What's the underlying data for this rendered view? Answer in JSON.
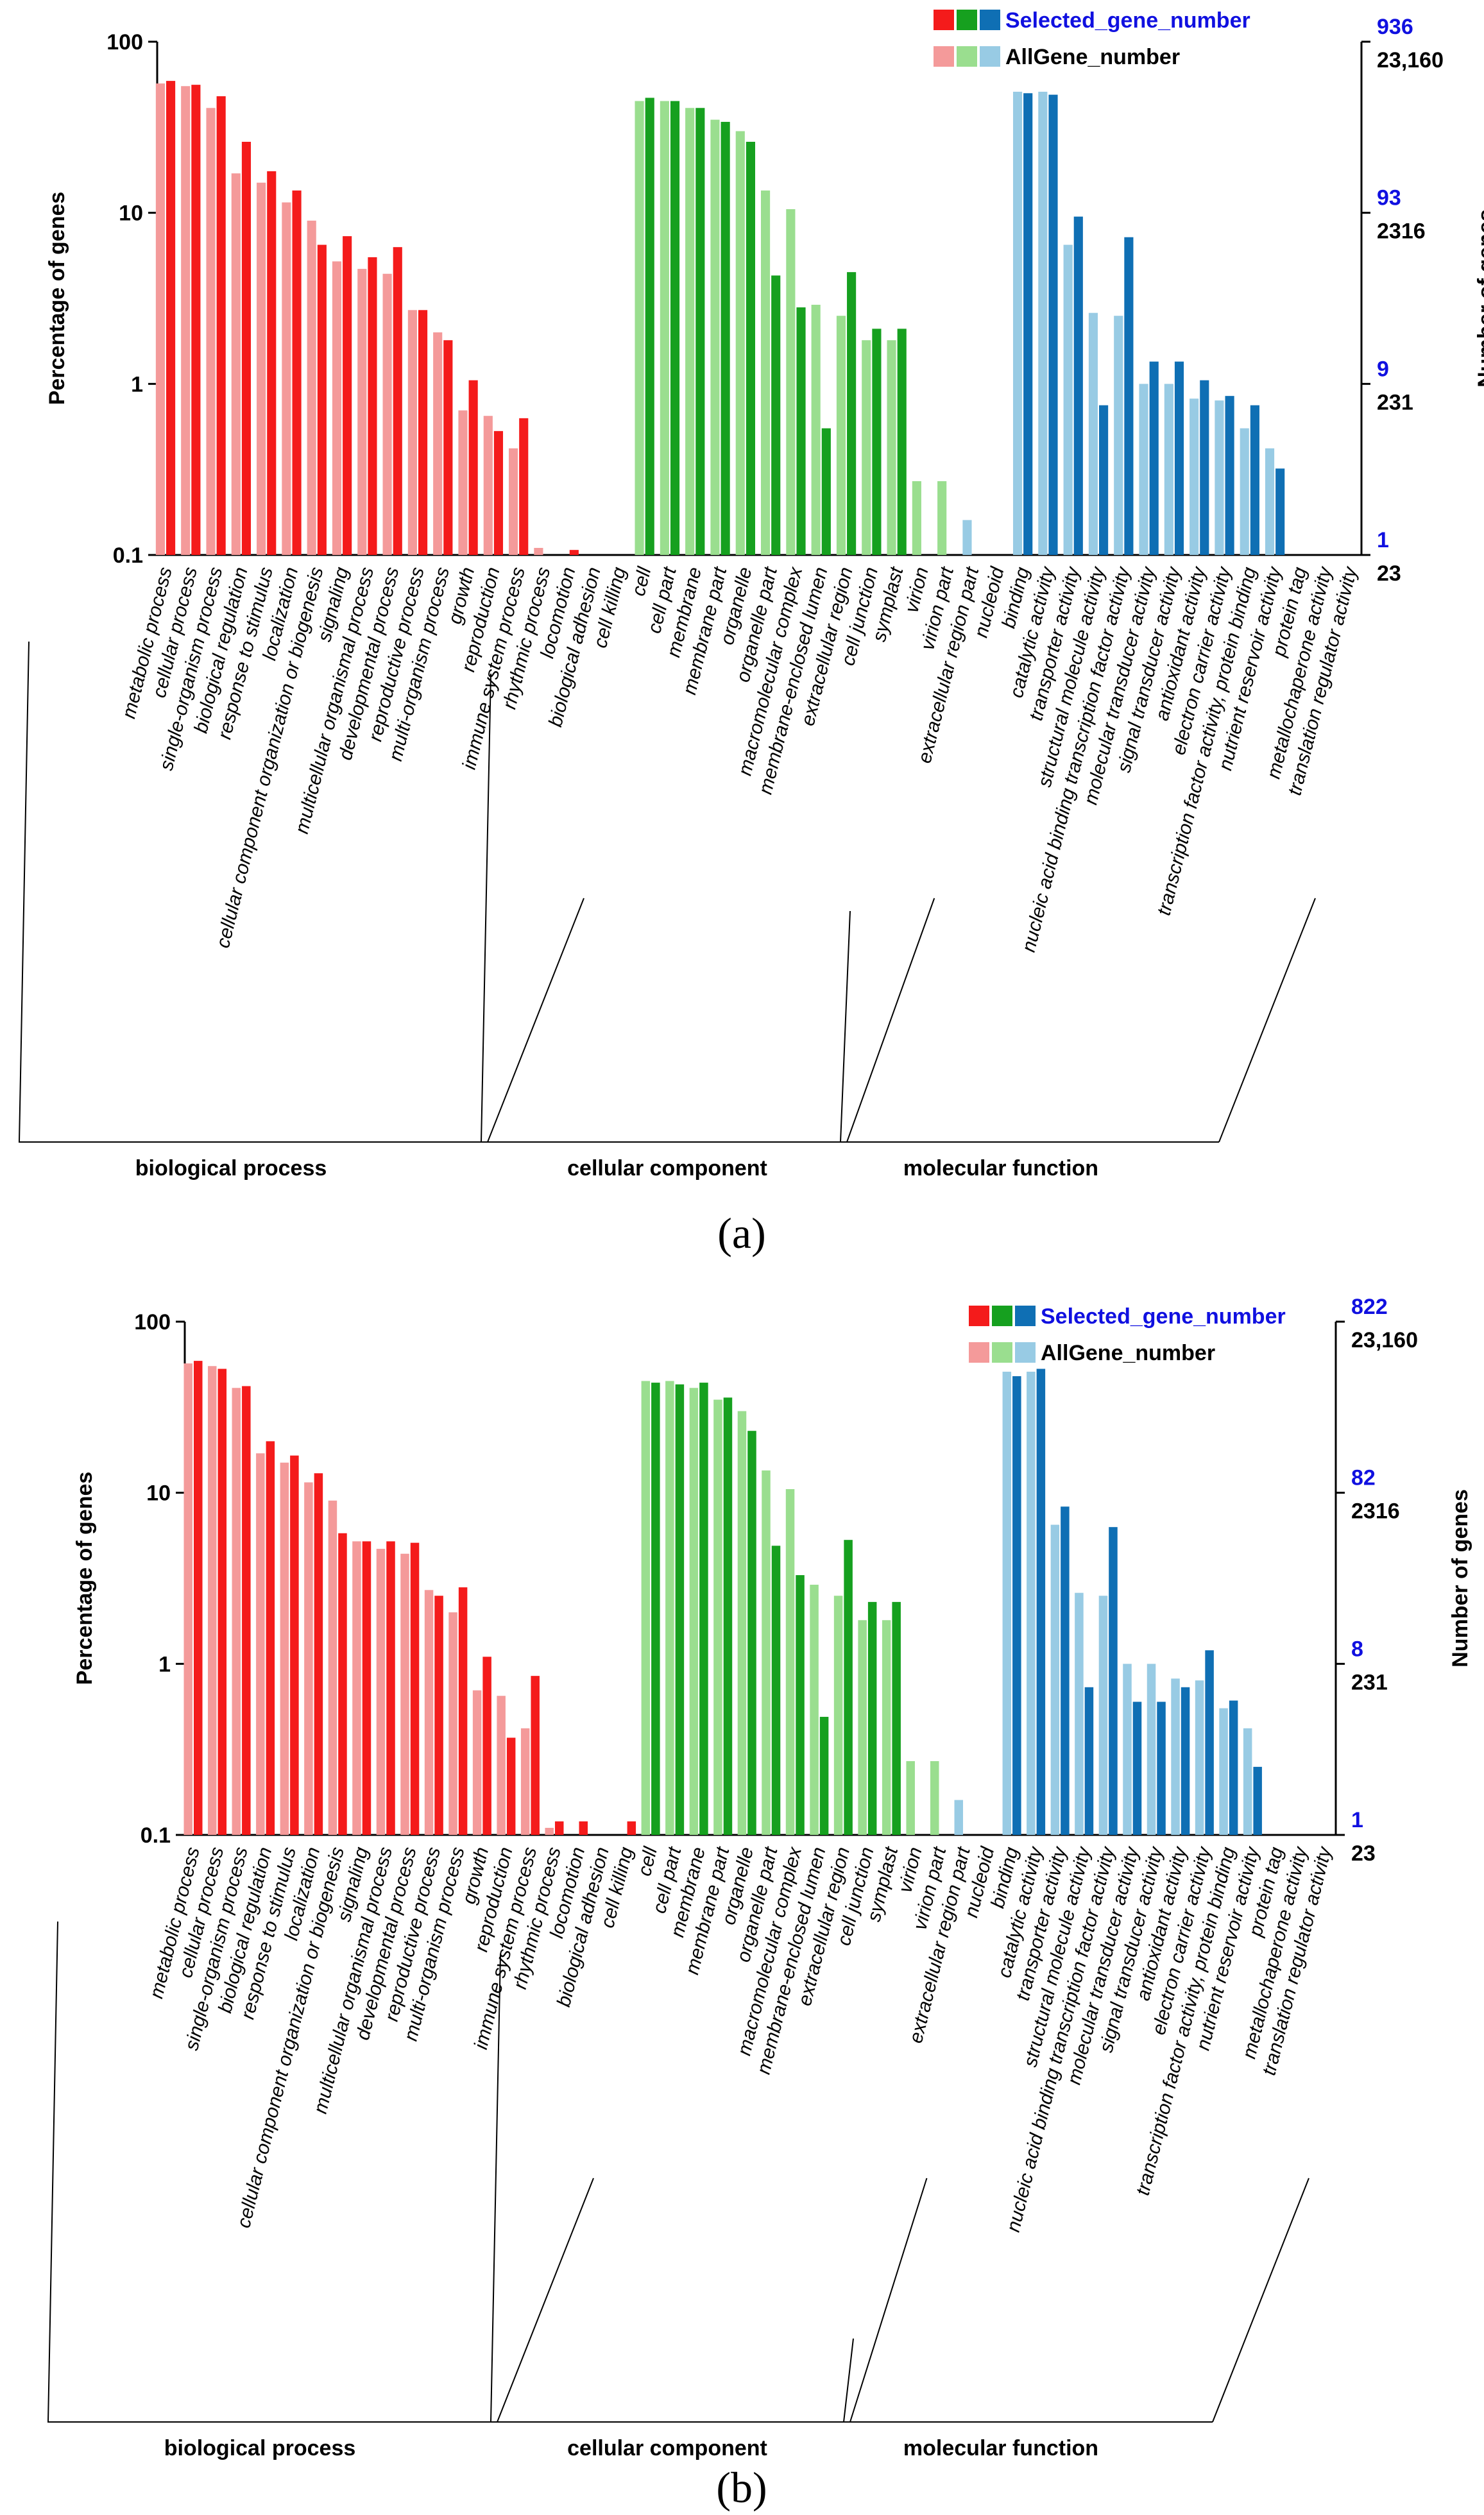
{
  "colors": {
    "bp_selected": "#f41b1b",
    "bp_all": "#f49a9a",
    "cc_selected": "#16a01f",
    "cc_all": "#9ade8f",
    "mf_selected": "#0f6fb4",
    "mf_all": "#98cbe4",
    "axis": "#000000",
    "right_label_blue": "#1010e0"
  },
  "chart_data": [
    {
      "type": "bar",
      "panel_label": "(a)",
      "title": "",
      "ylabel": "Percentage of genes",
      "ylabel_right": "Number of genes",
      "yscale": "log",
      "ylim": [
        0.1,
        100
      ],
      "yticks": [
        "100",
        "10",
        "1",
        "0.1"
      ],
      "right_ticks": [
        {
          "selected": "936",
          "all": "23,160"
        },
        {
          "selected": "93",
          "all": "2316"
        },
        {
          "selected": "9",
          "all": "231"
        },
        {
          "selected": "1",
          "all": "23"
        }
      ],
      "legend": {
        "selected": "Selected_gene_number",
        "all": "AllGene_number"
      },
      "groups": [
        {
          "name": "biological process",
          "key": "bp",
          "count": 19
        },
        {
          "name": "cellular component",
          "key": "cc",
          "count": 13
        },
        {
          "name": "molecular function",
          "key": "mf",
          "count": 16
        }
      ],
      "categories": [
        "metabolic process",
        "cellular process",
        "single-organism process",
        "biological regulation",
        "response to stimulus",
        "localization",
        "cellular component organization or biogenesis",
        "signaling",
        "multicellular organismal process",
        "developmental process",
        "reproductive process",
        "multi-organism process",
        "growth",
        "reproduction",
        "immune system process",
        "rhythmic process",
        "locomotion",
        "biological adhesion",
        "cell killing",
        "cell",
        "cell part",
        "membrane",
        "membrane part",
        "organelle",
        "organelle part",
        "macromolecular complex",
        "membrane-enclosed lumen",
        "extracellular region",
        "cell junction",
        "symplast",
        "virion",
        "virion part",
        "extracellular region part",
        "nucleoid",
        "binding",
        "catalytic activity",
        "transporter activity",
        "structural molecule activity",
        "nucleic acid binding transcription factor activity",
        "molecular transducer activity",
        "signal transducer activity",
        "antioxidant activity",
        "electron carrier activity",
        "transcription factor activity, protein binding",
        "nutrient reservoir activity",
        "protein tag",
        "metallochaperone activity",
        "translation regulator activity"
      ],
      "series": [
        {
          "name": "AllGene_number",
          "values": [
            57,
            55,
            41,
            17,
            15,
            11.5,
            9,
            5.2,
            4.7,
            4.4,
            2.7,
            2.0,
            0.7,
            0.65,
            0.42,
            0.11,
            0,
            0,
            0,
            45,
            45,
            41,
            35,
            30,
            13.5,
            10.5,
            2.9,
            2.5,
            1.8,
            1.8,
            0.27,
            0.27,
            0.16,
            0,
            51,
            51,
            6.5,
            2.6,
            2.5,
            1.0,
            1.0,
            0.82,
            0.8,
            0.55,
            0.42,
            0,
            0,
            0
          ]
        },
        {
          "name": "Selected_gene_number",
          "values": [
            59,
            56,
            48,
            26,
            17.5,
            13.5,
            6.5,
            7.3,
            5.5,
            6.3,
            2.7,
            1.8,
            1.05,
            0.53,
            0.63,
            0,
            0.107,
            0,
            0,
            47,
            45,
            41,
            34,
            26,
            4.3,
            2.8,
            0.55,
            4.5,
            2.1,
            2.1,
            0,
            0,
            0,
            0,
            50,
            49,
            9.5,
            0.75,
            7.2,
            1.35,
            1.35,
            1.05,
            0.85,
            0.75,
            0.32,
            0,
            0,
            0
          ]
        }
      ]
    },
    {
      "type": "bar",
      "panel_label": "(b)",
      "title": "",
      "ylabel": "Percentage of genes",
      "ylabel_right": "Number of genes",
      "yscale": "log",
      "ylim": [
        0.1,
        100
      ],
      "yticks": [
        "100",
        "10",
        "1",
        "0.1"
      ],
      "right_ticks": [
        {
          "selected": "822",
          "all": "23,160"
        },
        {
          "selected": "82",
          "all": "2316"
        },
        {
          "selected": "8",
          "all": "231"
        },
        {
          "selected": "1",
          "all": "23"
        }
      ],
      "legend": {
        "selected": "Selected_gene_number",
        "all": "AllGene_number"
      },
      "groups": [
        {
          "name": "biological process",
          "key": "bp",
          "count": 19
        },
        {
          "name": "cellular component",
          "key": "cc",
          "count": 13
        },
        {
          "name": "molecular function",
          "key": "mf",
          "count": 16
        }
      ],
      "categories": [
        "metabolic process",
        "cellular process",
        "single-organism process",
        "biological regulation",
        "response to stimulus",
        "localization",
        "cellular component organization or biogenesis",
        "signaling",
        "multicellular organismal process",
        "developmental process",
        "reproductive process",
        "multi-organism process",
        "growth",
        "reproduction",
        "immune system process",
        "rhythmic process",
        "locomotion",
        "biological adhesion",
        "cell killing",
        "cell",
        "cell part",
        "membrane",
        "membrane part",
        "organelle",
        "organelle part",
        "macromolecular complex",
        "membrane-enclosed lumen",
        "extracellular region",
        "cell junction",
        "symplast",
        "virion",
        "virion part",
        "extracellular region part",
        "nucleoid",
        "binding",
        "catalytic activity",
        "transporter activity",
        "structural molecule activity",
        "nucleic acid binding transcription factor activity",
        "molecular transducer activity",
        "signal transducer activity",
        "antioxidant activity",
        "electron carrier activity",
        "transcription factor activity, protein binding",
        "nutrient reservoir activity",
        "protein tag",
        "metallochaperone activity",
        "translation regulator activity"
      ],
      "series": [
        {
          "name": "AllGene_number",
          "values": [
            57,
            55,
            41,
            17,
            15,
            11.5,
            9,
            5.2,
            4.7,
            4.4,
            2.7,
            2.0,
            0.7,
            0.65,
            0.42,
            0.11,
            0,
            0,
            0,
            45,
            45,
            41,
            35,
            30,
            13.5,
            10.5,
            2.9,
            2.5,
            1.8,
            1.8,
            0.27,
            0.27,
            0.16,
            0,
            51,
            51,
            6.5,
            2.6,
            2.5,
            1.0,
            1.0,
            0.82,
            0.8,
            0.55,
            0.42,
            0,
            0,
            0
          ]
        },
        {
          "name": "Selected_gene_number",
          "values": [
            59,
            53,
            42,
            20,
            16.5,
            13,
            5.8,
            5.2,
            5.2,
            5.1,
            2.5,
            2.8,
            1.1,
            0.37,
            0.85,
            0.12,
            0.12,
            0,
            0.12,
            44,
            43,
            44,
            36,
            23,
            4.9,
            3.3,
            0.49,
            5.3,
            2.3,
            2.3,
            0,
            0,
            0,
            0,
            48,
            53,
            8.3,
            0.73,
            6.3,
            0.6,
            0.6,
            0.73,
            1.2,
            0.61,
            0.25,
            0,
            0,
            0
          ]
        }
      ]
    }
  ]
}
